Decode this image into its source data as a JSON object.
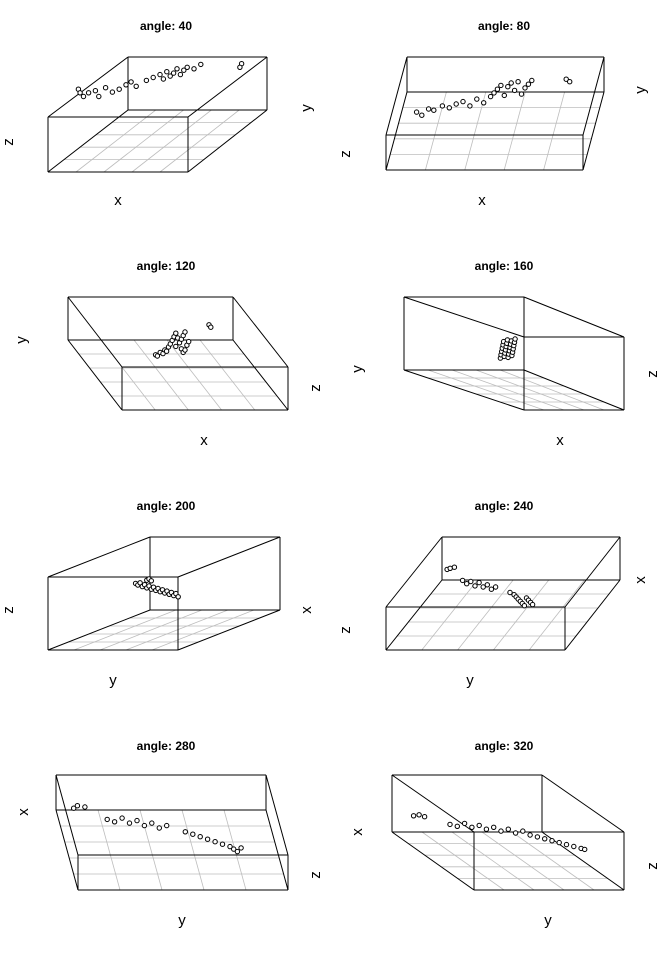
{
  "chart_data": [
    {
      "type": "scatter3d",
      "title": "angle: 40",
      "axis_labels": {
        "x": "x",
        "y": "y",
        "z": "z"
      },
      "points": [
        [
          0.02,
          0.6
        ],
        [
          0.03,
          0.55
        ],
        [
          0.05,
          0.5
        ],
        [
          0.08,
          0.55
        ],
        [
          0.12,
          0.58
        ],
        [
          0.14,
          0.5
        ],
        [
          0.18,
          0.62
        ],
        [
          0.22,
          0.56
        ],
        [
          0.26,
          0.6
        ],
        [
          0.3,
          0.66
        ],
        [
          0.33,
          0.7
        ],
        [
          0.36,
          0.64
        ],
        [
          0.42,
          0.72
        ],
        [
          0.46,
          0.76
        ],
        [
          0.5,
          0.8
        ],
        [
          0.52,
          0.74
        ],
        [
          0.54,
          0.84
        ],
        [
          0.56,
          0.78
        ],
        [
          0.58,
          0.82
        ],
        [
          0.6,
          0.88
        ],
        [
          0.62,
          0.8
        ],
        [
          0.64,
          0.86
        ],
        [
          0.66,
          0.9
        ],
        [
          0.7,
          0.88
        ],
        [
          0.74,
          0.94
        ],
        [
          0.98,
          0.95
        ],
        [
          0.97,
          0.9
        ]
      ]
    },
    {
      "type": "scatter3d",
      "title": "angle: 80",
      "axis_labels": {
        "x": "x",
        "y": "y",
        "z": "z"
      },
      "points": [
        [
          0.05,
          0.45
        ],
        [
          0.08,
          0.4
        ],
        [
          0.12,
          0.5
        ],
        [
          0.15,
          0.48
        ],
        [
          0.2,
          0.55
        ],
        [
          0.24,
          0.52
        ],
        [
          0.28,
          0.58
        ],
        [
          0.32,
          0.62
        ],
        [
          0.36,
          0.55
        ],
        [
          0.4,
          0.66
        ],
        [
          0.44,
          0.6
        ],
        [
          0.48,
          0.7
        ],
        [
          0.5,
          0.76
        ],
        [
          0.52,
          0.82
        ],
        [
          0.54,
          0.88
        ],
        [
          0.56,
          0.72
        ],
        [
          0.58,
          0.86
        ],
        [
          0.6,
          0.92
        ],
        [
          0.62,
          0.8
        ],
        [
          0.64,
          0.94
        ],
        [
          0.66,
          0.74
        ],
        [
          0.68,
          0.84
        ],
        [
          0.7,
          0.9
        ],
        [
          0.72,
          0.96
        ],
        [
          0.92,
          0.98
        ],
        [
          0.94,
          0.94
        ]
      ]
    },
    {
      "type": "scatter3d",
      "title": "angle: 120",
      "axis_labels": {
        "x": "x",
        "y": "y",
        "z": "z"
      },
      "points": [
        [
          0.3,
          0.42
        ],
        [
          0.32,
          0.4
        ],
        [
          0.35,
          0.46
        ],
        [
          0.38,
          0.44
        ],
        [
          0.4,
          0.5
        ],
        [
          0.42,
          0.48
        ],
        [
          0.44,
          0.55
        ],
        [
          0.46,
          0.6
        ],
        [
          0.48,
          0.66
        ],
        [
          0.5,
          0.72
        ],
        [
          0.52,
          0.78
        ],
        [
          0.54,
          0.7
        ],
        [
          0.56,
          0.62
        ],
        [
          0.58,
          0.68
        ],
        [
          0.6,
          0.74
        ],
        [
          0.62,
          0.8
        ],
        [
          0.64,
          0.58
        ],
        [
          0.66,
          0.64
        ],
        [
          0.58,
          0.52
        ],
        [
          0.6,
          0.46
        ],
        [
          0.62,
          0.5
        ],
        [
          0.52,
          0.56
        ],
        [
          0.88,
          0.92
        ],
        [
          0.9,
          0.88
        ]
      ]
    },
    {
      "type": "scatter3d",
      "title": "angle: 160",
      "axis_labels": {
        "x": "x",
        "y": "y",
        "z": "z"
      },
      "points": [
        [
          0.2,
          0.3
        ],
        [
          0.22,
          0.4
        ],
        [
          0.24,
          0.5
        ],
        [
          0.26,
          0.6
        ],
        [
          0.28,
          0.7
        ],
        [
          0.3,
          0.8
        ],
        [
          0.32,
          0.35
        ],
        [
          0.34,
          0.45
        ],
        [
          0.36,
          0.55
        ],
        [
          0.38,
          0.65
        ],
        [
          0.4,
          0.75
        ],
        [
          0.42,
          0.85
        ],
        [
          0.44,
          0.32
        ],
        [
          0.46,
          0.42
        ],
        [
          0.48,
          0.52
        ],
        [
          0.5,
          0.62
        ],
        [
          0.52,
          0.72
        ],
        [
          0.54,
          0.82
        ],
        [
          0.56,
          0.38
        ],
        [
          0.58,
          0.48
        ],
        [
          0.6,
          0.58
        ],
        [
          0.62,
          0.68
        ],
        [
          0.64,
          0.78
        ],
        [
          0.66,
          0.88
        ]
      ]
    },
    {
      "type": "scatter3d",
      "title": "angle: 200",
      "axis_labels": {
        "x": "x",
        "y": "y",
        "z": "z"
      },
      "points": [
        [
          0.1,
          0.8
        ],
        [
          0.14,
          0.75
        ],
        [
          0.18,
          0.82
        ],
        [
          0.22,
          0.7
        ],
        [
          0.26,
          0.76
        ],
        [
          0.3,
          0.66
        ],
        [
          0.34,
          0.72
        ],
        [
          0.38,
          0.62
        ],
        [
          0.42,
          0.68
        ],
        [
          0.46,
          0.58
        ],
        [
          0.5,
          0.64
        ],
        [
          0.54,
          0.54
        ],
        [
          0.58,
          0.6
        ],
        [
          0.62,
          0.5
        ],
        [
          0.66,
          0.56
        ],
        [
          0.7,
          0.46
        ],
        [
          0.74,
          0.52
        ],
        [
          0.78,
          0.42
        ],
        [
          0.82,
          0.48
        ],
        [
          0.86,
          0.38
        ],
        [
          0.3,
          0.9
        ],
        [
          0.34,
          0.94
        ],
        [
          0.38,
          0.88
        ]
      ]
    },
    {
      "type": "scatter3d",
      "title": "angle: 240",
      "axis_labels": {
        "x": "x",
        "y": "y",
        "z": "z"
      },
      "points": [
        [
          0.05,
          0.92
        ],
        [
          0.08,
          0.94
        ],
        [
          0.12,
          0.96
        ],
        [
          0.2,
          0.72
        ],
        [
          0.24,
          0.66
        ],
        [
          0.28,
          0.7
        ],
        [
          0.32,
          0.62
        ],
        [
          0.36,
          0.68
        ],
        [
          0.4,
          0.6
        ],
        [
          0.44,
          0.64
        ],
        [
          0.48,
          0.56
        ],
        [
          0.52,
          0.6
        ],
        [
          0.66,
          0.5
        ],
        [
          0.7,
          0.46
        ],
        [
          0.72,
          0.42
        ],
        [
          0.74,
          0.38
        ],
        [
          0.76,
          0.34
        ],
        [
          0.78,
          0.3
        ],
        [
          0.8,
          0.26
        ],
        [
          0.82,
          0.4
        ],
        [
          0.84,
          0.36
        ],
        [
          0.86,
          0.32
        ],
        [
          0.88,
          0.28
        ]
      ]
    },
    {
      "type": "scatter3d",
      "title": "angle: 280",
      "axis_labels": {
        "x": "x",
        "y": "y",
        "z": "z"
      },
      "points": [
        [
          0.02,
          0.9
        ],
        [
          0.04,
          0.94
        ],
        [
          0.08,
          0.92
        ],
        [
          0.2,
          0.72
        ],
        [
          0.24,
          0.68
        ],
        [
          0.28,
          0.74
        ],
        [
          0.32,
          0.66
        ],
        [
          0.36,
          0.7
        ],
        [
          0.4,
          0.62
        ],
        [
          0.44,
          0.66
        ],
        [
          0.48,
          0.58
        ],
        [
          0.52,
          0.62
        ],
        [
          0.62,
          0.52
        ],
        [
          0.66,
          0.48
        ],
        [
          0.7,
          0.44
        ],
        [
          0.74,
          0.4
        ],
        [
          0.78,
          0.36
        ],
        [
          0.82,
          0.32
        ],
        [
          0.86,
          0.28
        ],
        [
          0.88,
          0.24
        ],
        [
          0.9,
          0.2
        ],
        [
          0.92,
          0.26
        ]
      ]
    },
    {
      "type": "scatter3d",
      "title": "angle: 320",
      "axis_labels": {
        "x": "x",
        "y": "y",
        "z": "z"
      },
      "points": [
        [
          0.02,
          0.88
        ],
        [
          0.05,
          0.9
        ],
        [
          0.08,
          0.86
        ],
        [
          0.22,
          0.7
        ],
        [
          0.26,
          0.66
        ],
        [
          0.3,
          0.72
        ],
        [
          0.34,
          0.64
        ],
        [
          0.38,
          0.68
        ],
        [
          0.42,
          0.6
        ],
        [
          0.46,
          0.64
        ],
        [
          0.5,
          0.56
        ],
        [
          0.54,
          0.6
        ],
        [
          0.58,
          0.52
        ],
        [
          0.62,
          0.56
        ],
        [
          0.66,
          0.48
        ],
        [
          0.7,
          0.44
        ],
        [
          0.74,
          0.4
        ],
        [
          0.78,
          0.36
        ],
        [
          0.82,
          0.32
        ],
        [
          0.86,
          0.28
        ],
        [
          0.9,
          0.24
        ],
        [
          0.94,
          0.2
        ],
        [
          0.96,
          0.18
        ]
      ]
    }
  ]
}
